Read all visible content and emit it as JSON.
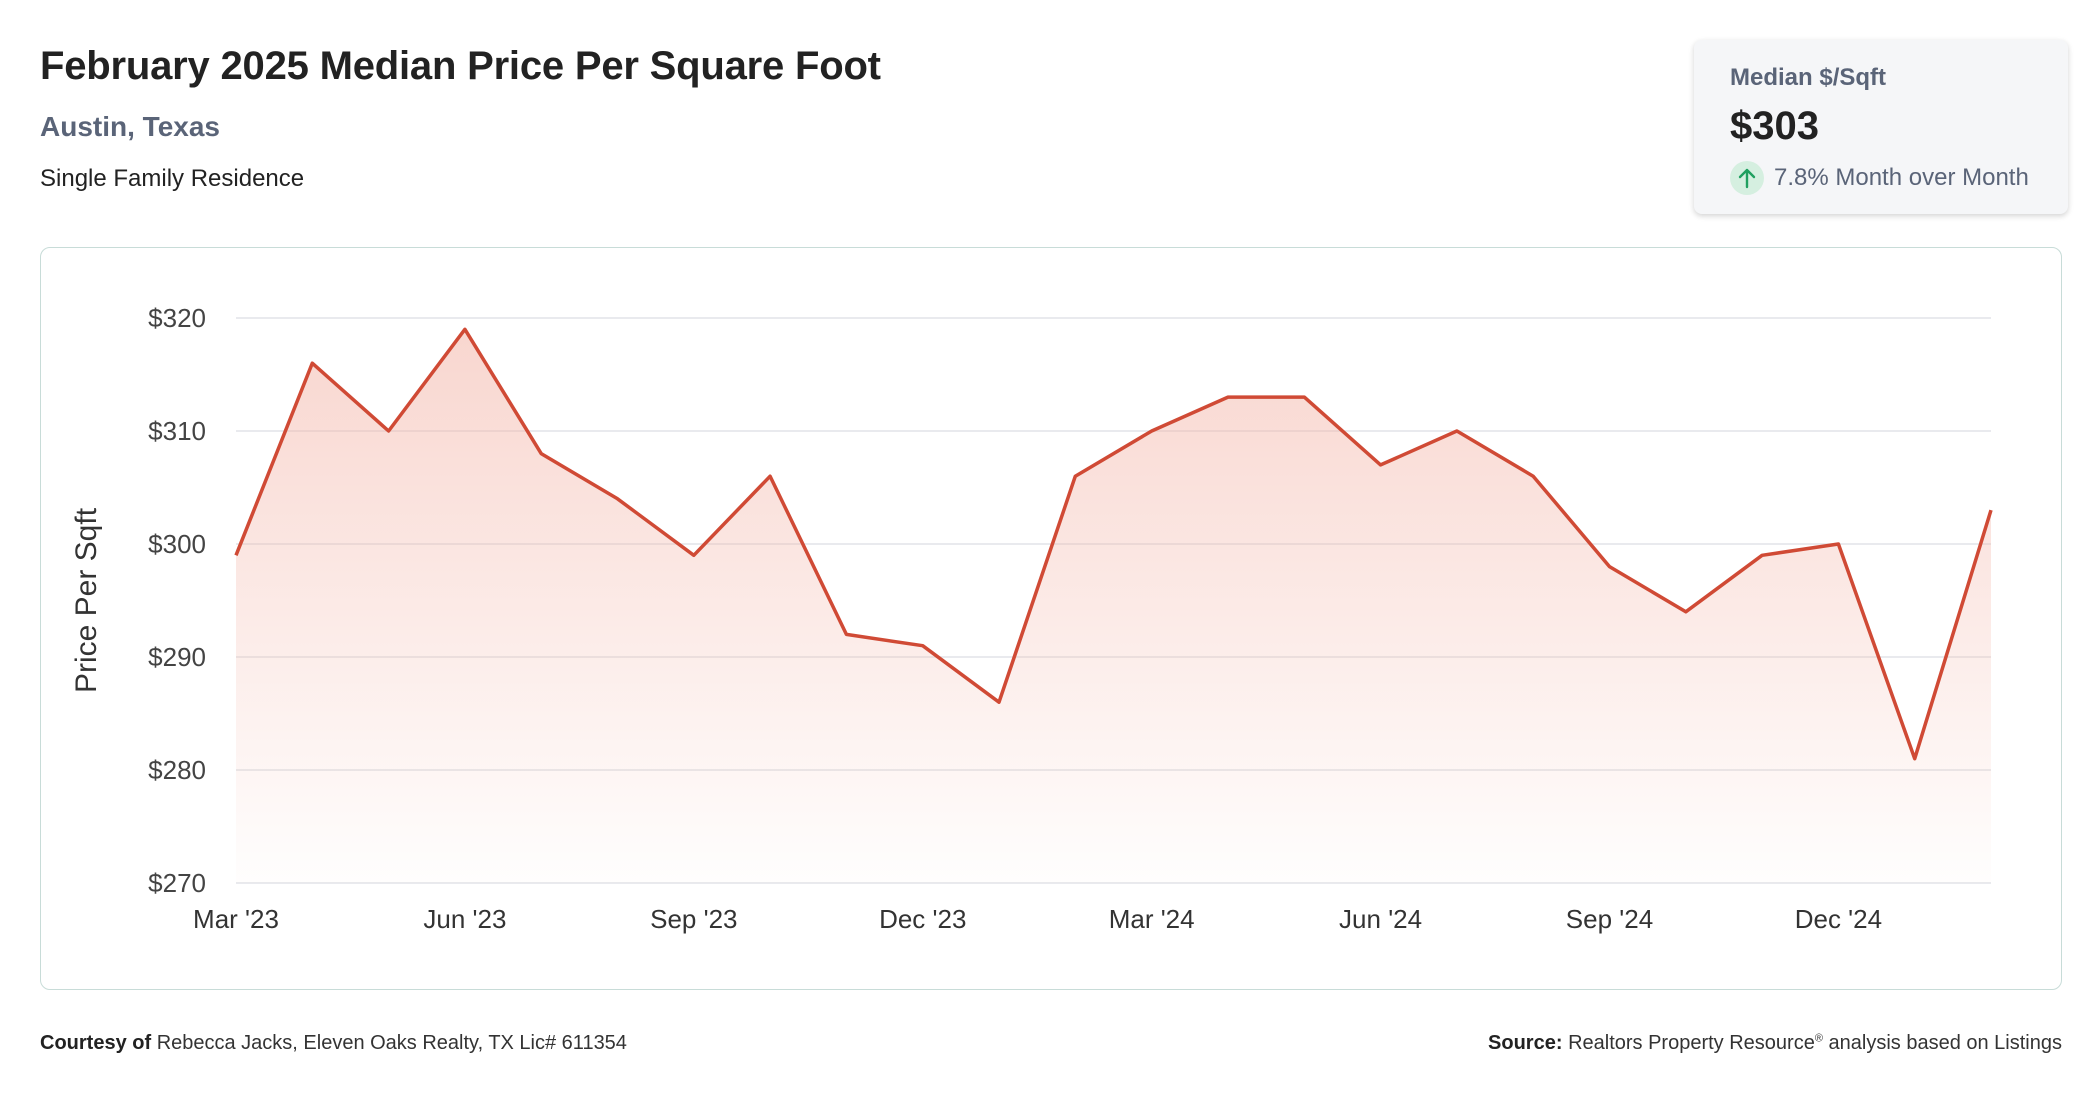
{
  "header": {
    "title": "February 2025 Median Price Per Square Foot",
    "location": "Austin, Texas",
    "property_type": "Single Family Residence"
  },
  "stat_card": {
    "label": "Median $/Sqft",
    "value": "$303",
    "change": "7.8% Month over Month",
    "change_direction": "up",
    "icon": "arrow-up-icon",
    "up_color": "#20a060"
  },
  "footer": {
    "courtesy_label": "Courtesy of",
    "courtesy_text": "Rebecca Jacks, Eleven Oaks Realty, TX Lic# 611354",
    "source_label": "Source:",
    "source_text_1": "Realtors Property Resource",
    "source_sup": "®",
    "source_text_2": " analysis based on Listings"
  },
  "chart_data": {
    "type": "area",
    "ylabel": "Price Per Sqft",
    "xlabel": "",
    "ylim": [
      270,
      320
    ],
    "yticks": [
      270,
      280,
      290,
      300,
      310,
      320
    ],
    "ytick_labels": [
      "$270",
      "$280",
      "$290",
      "$300",
      "$310",
      "$320"
    ],
    "x": [
      "2023-03",
      "2023-04",
      "2023-05",
      "2023-06",
      "2023-07",
      "2023-08",
      "2023-09",
      "2023-10",
      "2023-11",
      "2023-12",
      "2024-01",
      "2024-02",
      "2024-03",
      "2024-04",
      "2024-05",
      "2024-06",
      "2024-07",
      "2024-08",
      "2024-09",
      "2024-10",
      "2024-11",
      "2024-12",
      "2025-01",
      "2025-02"
    ],
    "xtick_labels": [
      "Mar '23",
      "",
      "",
      "Jun '23",
      "",
      "",
      "Sep '23",
      "",
      "",
      "Dec '23",
      "",
      "",
      "Mar '24",
      "",
      "",
      "Jun '24",
      "",
      "",
      "Sep '24",
      "",
      "",
      "Dec '24",
      "",
      ""
    ],
    "series": [
      {
        "values": [
          299,
          316,
          310,
          319,
          308,
          304,
          299,
          306,
          292,
          291,
          286,
          306,
          310,
          313,
          313,
          307,
          310,
          306,
          298,
          294,
          299,
          300,
          281,
          303
        ],
        "color": "#d04a35"
      }
    ],
    "grid": true,
    "legend": "none"
  }
}
